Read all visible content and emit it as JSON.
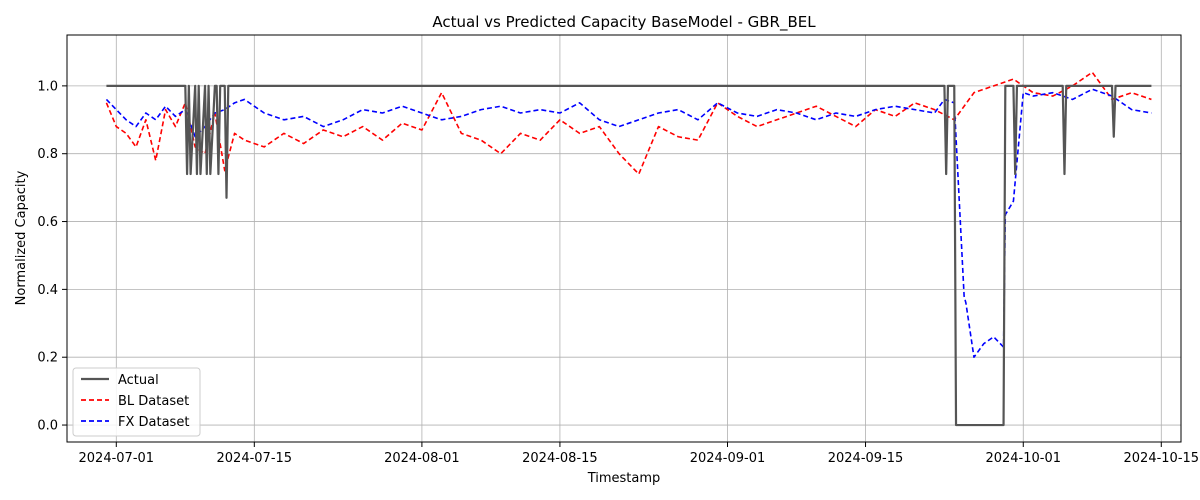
{
  "chart_data": {
    "type": "line",
    "title": "Actual vs Predicted Capacity BaseModel - GBR_BEL",
    "xlabel": "Timestamp",
    "ylabel": "Normalized Capacity",
    "xlim": [
      "2024-06-26",
      "2024-10-17"
    ],
    "ylim": [
      -0.05,
      1.15
    ],
    "x_ticks": [
      "2024-07-01",
      "2024-07-15",
      "2024-08-01",
      "2024-08-15",
      "2024-09-01",
      "2024-09-15",
      "2024-10-01",
      "2024-10-15"
    ],
    "y_ticks": [
      0.0,
      0.2,
      0.4,
      0.6,
      0.8,
      1.0
    ],
    "grid": true,
    "legend_position": "lower-left",
    "series": [
      {
        "name": "Actual",
        "color": "#555555",
        "style": "solid",
        "x": [
          "2024-06-30",
          "2024-07-08",
          "2024-07-08",
          "2024-07-08",
          "2024-07-08",
          "2024-07-09",
          "2024-07-09",
          "2024-07-09",
          "2024-07-09",
          "2024-07-10",
          "2024-07-10",
          "2024-07-10",
          "2024-07-10",
          "2024-07-11",
          "2024-07-11",
          "2024-07-11",
          "2024-07-11",
          "2024-07-12",
          "2024-07-12",
          "2024-07-12",
          "2024-07-12",
          "2024-09-23",
          "2024-09-23",
          "2024-09-23",
          "2024-09-24",
          "2024-09-24",
          "2024-09-29",
          "2024-09-29",
          "2024-09-30",
          "2024-09-30",
          "2024-09-30",
          "2024-10-05",
          "2024-10-05",
          "2024-10-05",
          "2024-10-10",
          "2024-10-10",
          "2024-10-10",
          "2024-10-14"
        ],
        "y": [
          1.0,
          1.0,
          0.74,
          1.0,
          0.74,
          1.0,
          0.74,
          1.0,
          0.74,
          1.0,
          0.74,
          1.0,
          0.74,
          1.0,
          1.0,
          0.74,
          1.0,
          1.0,
          0.67,
          1.0,
          1.0,
          1.0,
          0.74,
          1.0,
          1.0,
          0.0,
          0.0,
          1.0,
          1.0,
          0.74,
          1.0,
          1.0,
          0.74,
          1.0,
          1.0,
          0.85,
          1.0,
          1.0
        ]
      },
      {
        "name": "BL Dataset",
        "color": "#ff0000",
        "style": "dashed",
        "x": [
          "2024-06-30",
          "2024-07-01",
          "2024-07-02",
          "2024-07-03",
          "2024-07-04",
          "2024-07-05",
          "2024-07-06",
          "2024-07-07",
          "2024-07-08",
          "2024-07-09",
          "2024-07-10",
          "2024-07-11",
          "2024-07-12",
          "2024-07-13",
          "2024-07-14",
          "2024-07-16",
          "2024-07-18",
          "2024-07-20",
          "2024-07-22",
          "2024-07-24",
          "2024-07-26",
          "2024-07-28",
          "2024-07-30",
          "2024-08-01",
          "2024-08-03",
          "2024-08-05",
          "2024-08-07",
          "2024-08-09",
          "2024-08-11",
          "2024-08-13",
          "2024-08-15",
          "2024-08-17",
          "2024-08-19",
          "2024-08-21",
          "2024-08-23",
          "2024-08-25",
          "2024-08-27",
          "2024-08-29",
          "2024-08-31",
          "2024-09-02",
          "2024-09-04",
          "2024-09-06",
          "2024-09-08",
          "2024-09-10",
          "2024-09-12",
          "2024-09-14",
          "2024-09-16",
          "2024-09-18",
          "2024-09-20",
          "2024-09-22",
          "2024-09-24",
          "2024-09-26",
          "2024-09-28",
          "2024-09-30",
          "2024-10-02",
          "2024-10-04",
          "2024-10-06",
          "2024-10-08",
          "2024-10-10",
          "2024-10-12",
          "2024-10-14"
        ],
        "y": [
          0.95,
          0.88,
          0.86,
          0.82,
          0.9,
          0.78,
          0.93,
          0.88,
          0.95,
          0.82,
          0.8,
          0.92,
          0.75,
          0.86,
          0.84,
          0.82,
          0.86,
          0.83,
          0.87,
          0.85,
          0.88,
          0.84,
          0.89,
          0.87,
          0.98,
          0.86,
          0.84,
          0.8,
          0.86,
          0.84,
          0.9,
          0.86,
          0.88,
          0.8,
          0.74,
          0.88,
          0.85,
          0.84,
          0.95,
          0.91,
          0.88,
          0.9,
          0.92,
          0.94,
          0.91,
          0.88,
          0.93,
          0.91,
          0.95,
          0.93,
          0.9,
          0.98,
          1.0,
          1.02,
          0.98,
          0.97,
          1.0,
          1.04,
          0.96,
          0.98,
          0.96
        ]
      },
      {
        "name": "FX Dataset",
        "color": "#0000ff",
        "style": "dashed",
        "x": [
          "2024-06-30",
          "2024-07-01",
          "2024-07-02",
          "2024-07-03",
          "2024-07-04",
          "2024-07-05",
          "2024-07-06",
          "2024-07-07",
          "2024-07-08",
          "2024-07-09",
          "2024-07-10",
          "2024-07-11",
          "2024-07-12",
          "2024-07-13",
          "2024-07-14",
          "2024-07-16",
          "2024-07-18",
          "2024-07-20",
          "2024-07-22",
          "2024-07-24",
          "2024-07-26",
          "2024-07-28",
          "2024-07-30",
          "2024-08-01",
          "2024-08-03",
          "2024-08-05",
          "2024-08-07",
          "2024-08-09",
          "2024-08-11",
          "2024-08-13",
          "2024-08-15",
          "2024-08-17",
          "2024-08-19",
          "2024-08-21",
          "2024-08-23",
          "2024-08-25",
          "2024-08-27",
          "2024-08-29",
          "2024-08-31",
          "2024-09-02",
          "2024-09-04",
          "2024-09-06",
          "2024-09-08",
          "2024-09-10",
          "2024-09-12",
          "2024-09-14",
          "2024-09-16",
          "2024-09-18",
          "2024-09-20",
          "2024-09-22",
          "2024-09-23",
          "2024-09-24",
          "2024-09-25",
          "2024-09-25",
          "2024-09-26",
          "2024-09-27",
          "2024-09-28",
          "2024-09-29",
          "2024-09-29",
          "2024-09-30",
          "2024-10-01",
          "2024-10-02",
          "2024-10-04",
          "2024-10-06",
          "2024-10-08",
          "2024-10-10",
          "2024-10-12",
          "2024-10-14"
        ],
        "y": [
          0.96,
          0.93,
          0.9,
          0.88,
          0.92,
          0.9,
          0.94,
          0.91,
          0.93,
          0.85,
          0.88,
          0.92,
          0.93,
          0.95,
          0.96,
          0.92,
          0.9,
          0.91,
          0.88,
          0.9,
          0.93,
          0.92,
          0.94,
          0.92,
          0.9,
          0.91,
          0.93,
          0.94,
          0.92,
          0.93,
          0.92,
          0.95,
          0.9,
          0.88,
          0.9,
          0.92,
          0.93,
          0.9,
          0.95,
          0.92,
          0.91,
          0.93,
          0.92,
          0.9,
          0.92,
          0.91,
          0.93,
          0.94,
          0.93,
          0.92,
          0.96,
          0.95,
          0.38,
          0.36,
          0.2,
          0.24,
          0.26,
          0.23,
          0.62,
          0.66,
          0.98,
          0.97,
          0.98,
          0.96,
          0.99,
          0.97,
          0.93,
          0.92
        ]
      }
    ]
  }
}
